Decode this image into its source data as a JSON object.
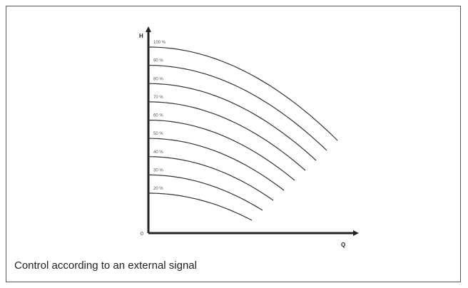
{
  "caption": "Control according to an external signal",
  "chart_data": {
    "type": "line",
    "xlabel": "Q",
    "ylabel": "H",
    "origin_label": "0",
    "grid": false,
    "legend": "none",
    "series": [
      {
        "name": "100 %",
        "level": 1.0
      },
      {
        "name": "90 %",
        "level": 0.9
      },
      {
        "name": "80 %",
        "level": 0.8
      },
      {
        "name": "70 %",
        "level": 0.7
      },
      {
        "name": "60 %",
        "level": 0.6
      },
      {
        "name": "50 %",
        "level": 0.5
      },
      {
        "name": "40 %",
        "level": 0.4
      },
      {
        "name": "30 %",
        "level": 0.3
      },
      {
        "name": "20 %",
        "level": 0.2
      }
    ]
  }
}
